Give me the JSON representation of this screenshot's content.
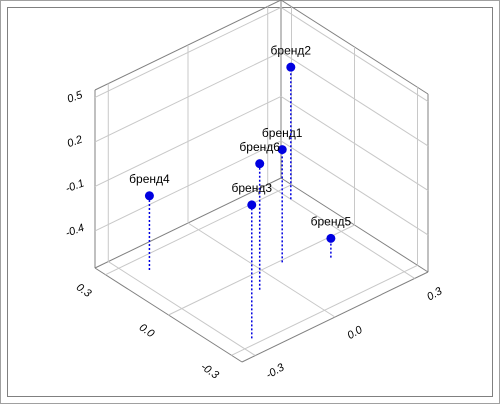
{
  "chart_data": {
    "type": "scatter3d",
    "points": [
      {
        "name": "бренд1",
        "x": -0.01,
        "y": 0.07,
        "z": 0.11
      },
      {
        "name": "бренд2",
        "x": 0.24,
        "y": 0.3,
        "z": 0.24
      },
      {
        "name": "бренд3",
        "x": -0.27,
        "y": -0.25,
        "z": 0.25
      },
      {
        "name": "бренд4",
        "x": 0.23,
        "y": -0.24,
        "z": -0.15
      },
      {
        "name": "бренд5",
        "x": -0.09,
        "y": 0.19,
        "z": -0.52
      },
      {
        "name": "бренд6",
        "x": -0.08,
        "y": -0.07,
        "z": 0.2
      }
    ],
    "color": "#0000e0",
    "xlim": [
      -0.35,
      0.35
    ],
    "xticks": [
      -0.3,
      {
        "value": 0,
        "label": "0.0"
      },
      0.3
    ],
    "ylim": [
      -0.35,
      0.35
    ],
    "yticks": [
      -0.3,
      {
        "value": 0,
        "label": "0.0"
      },
      0.3
    ],
    "zlim": [
      -0.65,
      0.55
    ],
    "zticks": [
      -0.4,
      -0.1,
      0.2,
      0.5
    ],
    "grid": true
  }
}
